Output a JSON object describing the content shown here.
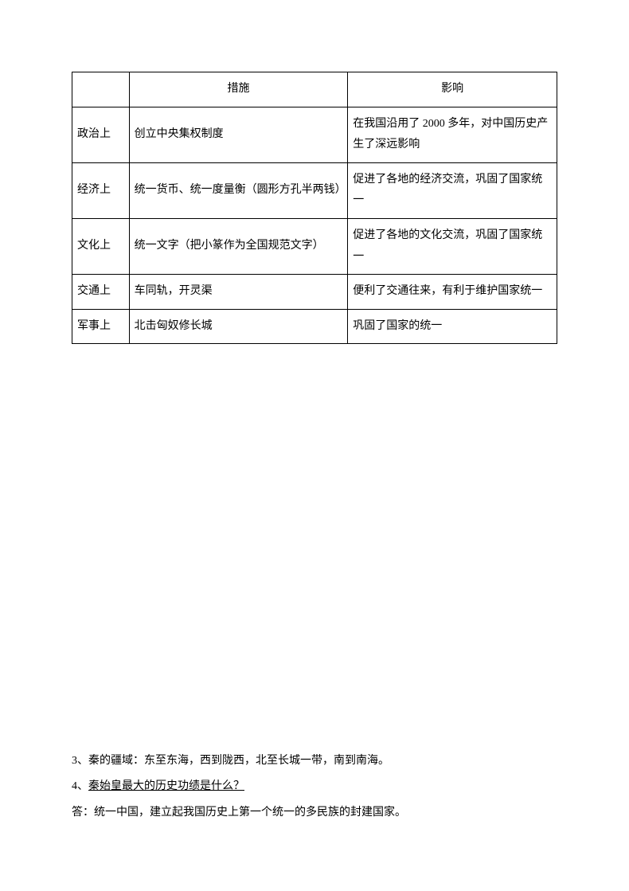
{
  "table": {
    "headers": {
      "category": "",
      "measure": "措施",
      "impact": "影响"
    },
    "rows": [
      {
        "category": "政治上",
        "measure": "创立中央集权制度",
        "impact": "在我国沿用了 2000 多年，对中国历史产生了深远影响"
      },
      {
        "category": "经济上",
        "measure": "统一货币、统一度量衡（圆形方孔半两钱）",
        "impact": "促进了各地的经济交流，巩固了国家统一"
      },
      {
        "category": "文化上",
        "measure": "统一文字（把小篆作为全国规范文字）",
        "impact": "促进了各地的文化交流，巩固了国家统一"
      },
      {
        "category": "交通上",
        "measure": "车同轨，开灵渠",
        "impact": "便利了交通往来，有利于维护国家统一"
      },
      {
        "category": "军事上",
        "measure": "北击匈奴修长城",
        "impact": "巩固了国家的统一"
      }
    ]
  },
  "paragraphs": {
    "p3": "3、秦的疆域：东至东海，西到陇西，北至长城一带，南到南海。",
    "p4_prefix": "4、",
    "p4_question": "秦始皇最大的历史功绩是什么？",
    "p4_answer": "答：统一中国，建立起我国历史上第一个统一的多民族的封建国家。"
  }
}
